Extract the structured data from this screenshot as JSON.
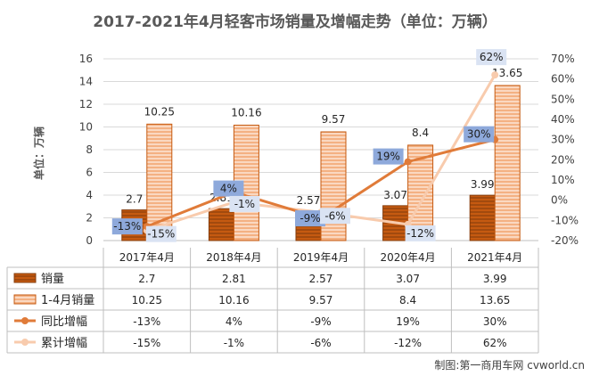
{
  "chart_data": {
    "type": "bar+line",
    "title": "2017-2021年4月轻客市场销量及增幅走势（单位：万辆）",
    "ylabel": "单位：万辆",
    "categories": [
      "2017年4月",
      "2018年4月",
      "2019年4月",
      "2020年4月",
      "2021年4月"
    ],
    "y_left": {
      "min": 0,
      "max": 16,
      "ticks": [
        "0",
        "2",
        "4",
        "6",
        "8",
        "10",
        "12",
        "14",
        "16"
      ]
    },
    "y_right": {
      "min": -20,
      "max": 70,
      "ticks": [
        "-20%",
        "-10%",
        "0%",
        "10%",
        "20%",
        "30%",
        "40%",
        "50%",
        "60%",
        "70%"
      ]
    },
    "series": [
      {
        "name": "销量",
        "type": "bar",
        "axis": "left",
        "values": [
          2.7,
          2.81,
          2.57,
          3.07,
          3.99
        ],
        "labels": [
          "2.7",
          "2.81",
          "2.57",
          "3.07",
          "3.99"
        ],
        "color": "#c55a11"
      },
      {
        "name": "1-4月销量",
        "type": "bar",
        "axis": "left",
        "values": [
          10.25,
          10.16,
          9.57,
          8.4,
          13.65
        ],
        "labels": [
          "10.25",
          "10.16",
          "9.57",
          "8.4",
          "13.65"
        ],
        "color": "#f4b183"
      },
      {
        "name": "同比增幅",
        "type": "line",
        "axis": "right",
        "values": [
          -13,
          4,
          -9,
          19,
          30
        ],
        "labels": [
          "-13%",
          "4%",
          "-9%",
          "19%",
          "30%"
        ],
        "color": "#e07b39"
      },
      {
        "name": "累计增幅",
        "type": "line",
        "axis": "right",
        "values": [
          -15,
          -1,
          -6,
          -12,
          62
        ],
        "labels": [
          "-15%",
          "-1%",
          "-6%",
          "-12%",
          "62%"
        ],
        "color": "#f8cbad"
      }
    ],
    "table": [
      [
        "2.7",
        "2.81",
        "2.57",
        "3.07",
        "3.99"
      ],
      [
        "10.25",
        "10.16",
        "9.57",
        "8.4",
        "13.65"
      ],
      [
        "-13%",
        "4%",
        "-9%",
        "19%",
        "30%"
      ],
      [
        "-15%",
        "-1%",
        "-6%",
        "-12%",
        "62%"
      ]
    ]
  },
  "source": "制图:第一商用车网 cvworld.cn",
  "colors": {
    "bar_dark": "#c55a11",
    "bar_light": "#f4b183",
    "line_yoy": "#e07b39",
    "line_cum": "#f8cbad",
    "yoy_box": "#8ea9db",
    "cum_box": "#dae3f3"
  }
}
